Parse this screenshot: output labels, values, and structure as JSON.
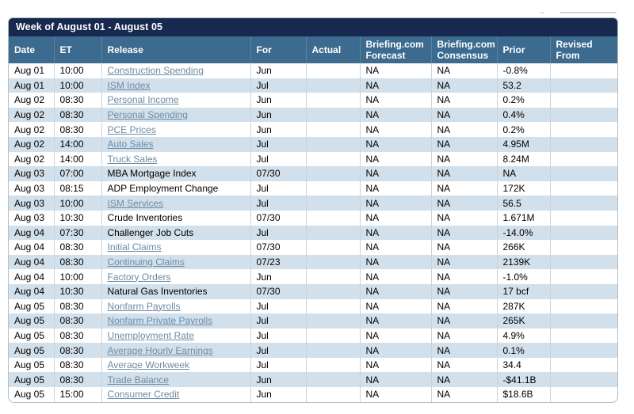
{
  "colors": {
    "title_bar": "#17294e",
    "header_row": "#3c6b8f",
    "alt_row": "#d2e0eb",
    "link": "#6d8ba3",
    "border": "#b6bdc4"
  },
  "calendar": {
    "title": "Week of August 01 - August 05",
    "columns": [
      "Date",
      "ET",
      "Release",
      "For",
      "Actual",
      "Briefing.com Forecast",
      "Briefing.com Consensus",
      "Prior",
      "Revised From"
    ],
    "rows": [
      {
        "date": "Aug 01",
        "et": "10:00",
        "release": "Construction Spending",
        "link": true,
        "for": "Jun",
        "actual": "",
        "forecast": "NA",
        "consensus": "NA",
        "prior": "-0.8%",
        "revised_from": ""
      },
      {
        "date": "Aug 01",
        "et": "10:00",
        "release": "ISM Index",
        "link": true,
        "for": "Jul",
        "actual": "",
        "forecast": "NA",
        "consensus": "NA",
        "prior": "53.2",
        "revised_from": ""
      },
      {
        "date": "Aug 02",
        "et": "08:30",
        "release": "Personal Income",
        "link": true,
        "for": "Jun",
        "actual": "",
        "forecast": "NA",
        "consensus": "NA",
        "prior": "0.2%",
        "revised_from": ""
      },
      {
        "date": "Aug 02",
        "et": "08:30",
        "release": "Personal Spending",
        "link": true,
        "for": "Jun",
        "actual": "",
        "forecast": "NA",
        "consensus": "NA",
        "prior": "0.4%",
        "revised_from": ""
      },
      {
        "date": "Aug 02",
        "et": "08:30",
        "release": "PCE Prices",
        "link": true,
        "for": "Jun",
        "actual": "",
        "forecast": "NA",
        "consensus": "NA",
        "prior": "0.2%",
        "revised_from": ""
      },
      {
        "date": "Aug 02",
        "et": "14:00",
        "release": "Auto Sales",
        "link": true,
        "for": "Jul",
        "actual": "",
        "forecast": "NA",
        "consensus": "NA",
        "prior": "4.95M",
        "revised_from": ""
      },
      {
        "date": "Aug 02",
        "et": "14:00",
        "release": "Truck Sales",
        "link": true,
        "for": "Jul",
        "actual": "",
        "forecast": "NA",
        "consensus": "NA",
        "prior": "8.24M",
        "revised_from": ""
      },
      {
        "date": "Aug 03",
        "et": "07:00",
        "release": "MBA Mortgage Index",
        "link": false,
        "for": "07/30",
        "actual": "",
        "forecast": "NA",
        "consensus": "NA",
        "prior": "NA",
        "revised_from": ""
      },
      {
        "date": "Aug 03",
        "et": "08:15",
        "release": "ADP Employment Change",
        "link": false,
        "for": "Jul",
        "actual": "",
        "forecast": "NA",
        "consensus": "NA",
        "prior": "172K",
        "revised_from": ""
      },
      {
        "date": "Aug 03",
        "et": "10:00",
        "release": "ISM Services",
        "link": true,
        "for": "Jul",
        "actual": "",
        "forecast": "NA",
        "consensus": "NA",
        "prior": "56.5",
        "revised_from": ""
      },
      {
        "date": "Aug 03",
        "et": "10:30",
        "release": "Crude Inventories",
        "link": false,
        "for": "07/30",
        "actual": "",
        "forecast": "NA",
        "consensus": "NA",
        "prior": "1.671M",
        "revised_from": ""
      },
      {
        "date": "Aug 04",
        "et": "07:30",
        "release": "Challenger Job Cuts",
        "link": false,
        "for": "Jul",
        "actual": "",
        "forecast": "NA",
        "consensus": "NA",
        "prior": "-14.0%",
        "revised_from": ""
      },
      {
        "date": "Aug 04",
        "et": "08:30",
        "release": "Initial Claims",
        "link": true,
        "for": "07/30",
        "actual": "",
        "forecast": "NA",
        "consensus": "NA",
        "prior": "266K",
        "revised_from": ""
      },
      {
        "date": "Aug 04",
        "et": "08:30",
        "release": "Continuing Claims",
        "link": true,
        "for": "07/23",
        "actual": "",
        "forecast": "NA",
        "consensus": "NA",
        "prior": "2139K",
        "revised_from": ""
      },
      {
        "date": "Aug 04",
        "et": "10:00",
        "release": "Factory Orders",
        "link": true,
        "for": "Jun",
        "actual": "",
        "forecast": "NA",
        "consensus": "NA",
        "prior": "-1.0%",
        "revised_from": ""
      },
      {
        "date": "Aug 04",
        "et": "10:30",
        "release": "Natural Gas Inventories",
        "link": false,
        "for": "07/30",
        "actual": "",
        "forecast": "NA",
        "consensus": "NA",
        "prior": "17 bcf",
        "revised_from": ""
      },
      {
        "date": "Aug 05",
        "et": "08:30",
        "release": "Nonfarm Payrolls",
        "link": true,
        "for": "Jul",
        "actual": "",
        "forecast": "NA",
        "consensus": "NA",
        "prior": "287K",
        "revised_from": ""
      },
      {
        "date": "Aug 05",
        "et": "08:30",
        "release": "Nonfarm Private Payrolls",
        "link": true,
        "for": "Jul",
        "actual": "",
        "forecast": "NA",
        "consensus": "NA",
        "prior": "265K",
        "revised_from": ""
      },
      {
        "date": "Aug 05",
        "et": "08:30",
        "release": "Unemployment Rate",
        "link": true,
        "for": "Jul",
        "actual": "",
        "forecast": "NA",
        "consensus": "NA",
        "prior": "4.9%",
        "revised_from": ""
      },
      {
        "date": "Aug 05",
        "et": "08:30",
        "release": "Average Hourly Earnings",
        "link": true,
        "for": "Jul",
        "actual": "",
        "forecast": "NA",
        "consensus": "NA",
        "prior": "0.1%",
        "revised_from": ""
      },
      {
        "date": "Aug 05",
        "et": "08:30",
        "release": "Average Workweek",
        "link": true,
        "for": "Jul",
        "actual": "",
        "forecast": "NA",
        "consensus": "NA",
        "prior": "34.4",
        "revised_from": ""
      },
      {
        "date": "Aug 05",
        "et": "08:30",
        "release": "Trade Balance",
        "link": true,
        "for": "Jun",
        "actual": "",
        "forecast": "NA",
        "consensus": "NA",
        "prior": "-$41.1B",
        "revised_from": ""
      },
      {
        "date": "Aug 05",
        "et": "15:00",
        "release": "Consumer Credit",
        "link": true,
        "for": "Jun",
        "actual": "",
        "forecast": "NA",
        "consensus": "NA",
        "prior": "$18.6B",
        "revised_from": ""
      }
    ]
  }
}
